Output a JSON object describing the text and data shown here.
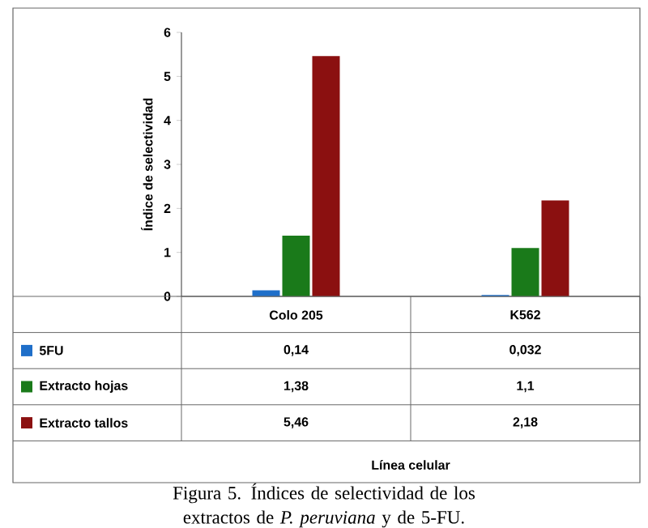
{
  "chart_data": {
    "type": "bar",
    "ylabel": "Índice de selectividad",
    "categories": [
      "Colo 205",
      "K562"
    ],
    "series": [
      {
        "name": "5FU",
        "color": "#1f6fc9",
        "values": [
          0.14,
          0.032
        ],
        "value_labels": [
          "0,14",
          "0,032"
        ]
      },
      {
        "name": "Extracto hojas",
        "color": "#1a7a1a",
        "values": [
          1.38,
          1.1
        ],
        "value_labels": [
          "1,38",
          "1,1"
        ]
      },
      {
        "name": "Extracto tallos",
        "color": "#8b1010",
        "values": [
          5.46,
          2.18
        ],
        "value_labels": [
          "5,46",
          "2,18"
        ]
      }
    ],
    "ylim": [
      0,
      6
    ],
    "yticks": [
      0,
      1,
      2,
      3,
      4,
      5,
      6
    ],
    "legend": "bottom",
    "annotations": [
      "Línea celular",
      "Figura 5. Índices de selectividad de los extractos de *P. peruviana* y de 5-FU."
    ]
  }
}
